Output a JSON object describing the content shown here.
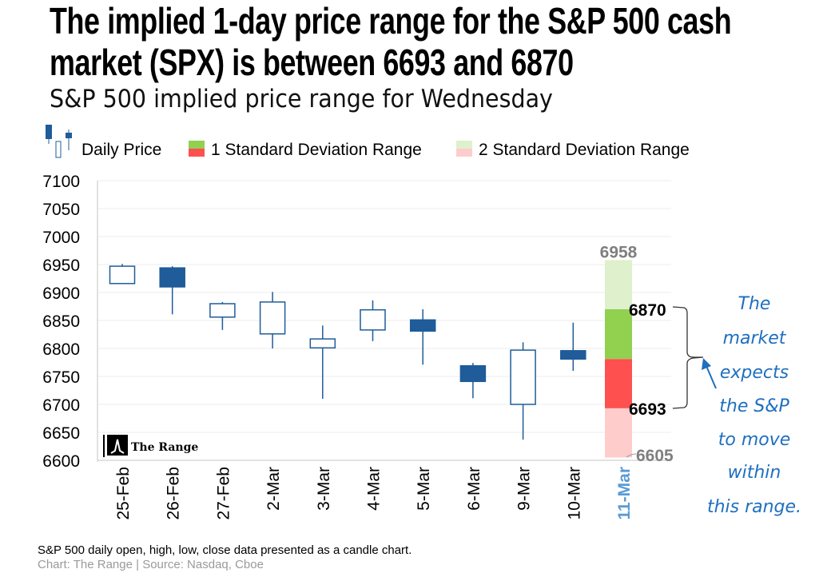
{
  "title": {
    "line1": "The implied 1-day price range for the S&P 500 cash",
    "line2": "market (SPX) is between 6693 and 6870"
  },
  "subtitle": "S&P 500 implied price range for Wednesday",
  "footer": {
    "note": "S&P 500 daily open, high, low, close data presented as a candle chart.",
    "source": "Chart: The Range | Source: Nasdaq, Cboe"
  },
  "logo_text": "The Range",
  "annotation": [
    "The",
    "market",
    "expects",
    "the S&P",
    "to move",
    "within",
    "this range."
  ],
  "colors": {
    "candle": "#1f5c99",
    "sd1_up": "#92d050",
    "sd1_down": "#ff5050",
    "sd2_up": "#dff0cc",
    "sd2_down": "#ffcccc",
    "annotation": "#1f6fbf",
    "highlight_label": "#5b9bd5"
  },
  "chart_data": {
    "type": "candlestick",
    "legend": [
      "Daily Price",
      "1 Standard Deviation Range",
      "2 Standard Deviation Range"
    ],
    "legend_position": "top-left",
    "ylim": [
      6600,
      7100
    ],
    "yticks": [
      6600,
      6650,
      6700,
      6750,
      6800,
      6850,
      6900,
      6950,
      7000,
      7050,
      7100
    ],
    "categories": [
      "25-Feb",
      "26-Feb",
      "27-Feb",
      "2-Mar",
      "3-Mar",
      "4-Mar",
      "5-Mar",
      "6-Mar",
      "9-Mar",
      "10-Mar",
      "11-Mar"
    ],
    "candles": [
      {
        "date": "25-Feb",
        "open": 6916,
        "high": 6951,
        "low": 6916,
        "close": 6947
      },
      {
        "date": "26-Feb",
        "open": 6944,
        "high": 6947,
        "low": 6861,
        "close": 6910
      },
      {
        "date": "27-Feb",
        "open": 6856,
        "high": 6883,
        "low": 6833,
        "close": 6880
      },
      {
        "date": "2-Mar",
        "open": 6826,
        "high": 6901,
        "low": 6800,
        "close": 6883
      },
      {
        "date": "3-Mar",
        "open": 6801,
        "high": 6841,
        "low": 6710,
        "close": 6817
      },
      {
        "date": "4-Mar",
        "open": 6833,
        "high": 6886,
        "low": 6813,
        "close": 6869
      },
      {
        "date": "5-Mar",
        "open": 6851,
        "high": 6870,
        "low": 6771,
        "close": 6831
      },
      {
        "date": "6-Mar",
        "open": 6769,
        "high": 6774,
        "low": 6711,
        "close": 6741
      },
      {
        "date": "9-Mar",
        "open": 6700,
        "high": 6811,
        "low": 6637,
        "close": 6797
      },
      {
        "date": "10-Mar",
        "open": 6796,
        "high": 6846,
        "low": 6760,
        "close": 6781
      }
    ],
    "range": {
      "date": "11-Mar",
      "sd2_high": 6958,
      "sd1_high": 6870,
      "mid": 6781,
      "sd1_low": 6693,
      "sd2_low": 6605
    },
    "range_labels": {
      "sd2_high": "6958",
      "sd1_high": "6870",
      "sd1_low": "6693",
      "sd2_low": "6605"
    }
  }
}
